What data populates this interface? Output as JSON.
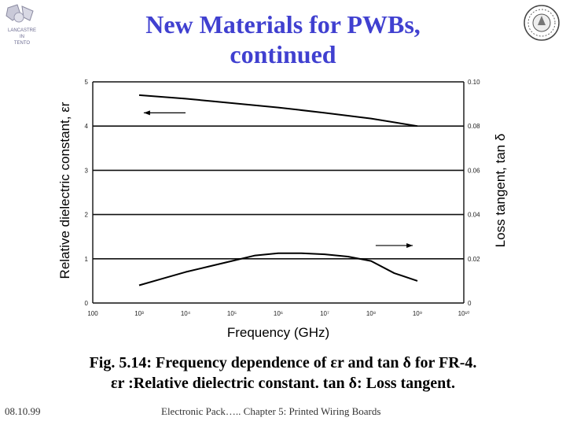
{
  "slide": {
    "title_line1": "New Materials for PWBs,",
    "title_line2": "continued",
    "logo_left_text": [
      "LANCASTRE",
      "IN",
      "TENTO"
    ],
    "caption_line1": "Fig. 5.14: Frequency dependence of εr and tan δ for FR-4.",
    "caption_line2": "εr :Relative dielectric constant. tan δ: Loss tangent.",
    "footer_date": "08.10.99",
    "footer_text": "Electronic Pack….. Chapter 5: Printed Wiring Boards",
    "title_color": "#4040d0"
  },
  "chart_data": {
    "type": "line",
    "xlabel": "Frequency (GHz)",
    "ylabel": "Relative dielectric constant, εr",
    "y2label": "Loss tangent, tan δ",
    "x_ticks": [
      "100",
      "10³",
      "10⁴",
      "10⁵",
      "10⁶",
      "10⁷",
      "10⁸",
      "10⁹",
      "10¹⁰"
    ],
    "x_log_exponents": [
      2,
      3,
      4,
      5,
      6,
      7,
      8,
      9,
      10
    ],
    "xlim_exponent": [
      2,
      10
    ],
    "y_ticks": [
      "0",
      "1",
      "2",
      "3",
      "4",
      "5"
    ],
    "ylim": [
      0,
      5
    ],
    "y2_ticks": [
      "0",
      "0.02",
      "0.04",
      "0.06",
      "0.08",
      "0.10"
    ],
    "y2lim": [
      0,
      0.1
    ],
    "grid": "horizontal",
    "series": [
      {
        "axis": "left",
        "x_exponent": [
          3,
          4,
          5,
          6,
          7,
          8,
          9
        ],
        "values": [
          4.7,
          4.62,
          4.52,
          4.42,
          4.3,
          4.17,
          4.0
        ]
      },
      {
        "axis": "right",
        "x_exponent": [
          3,
          3.5,
          4,
          4.5,
          5,
          5.5,
          6,
          6.5,
          7,
          7.5,
          8,
          8.5,
          9
        ],
        "values": [
          0.008,
          0.011,
          0.014,
          0.0165,
          0.019,
          0.0215,
          0.0225,
          0.0225,
          0.022,
          0.021,
          0.019,
          0.0135,
          0.01
        ]
      }
    ],
    "arrows": [
      {
        "points_to": "left-axis"
      },
      {
        "points_to": "right-axis"
      }
    ]
  }
}
